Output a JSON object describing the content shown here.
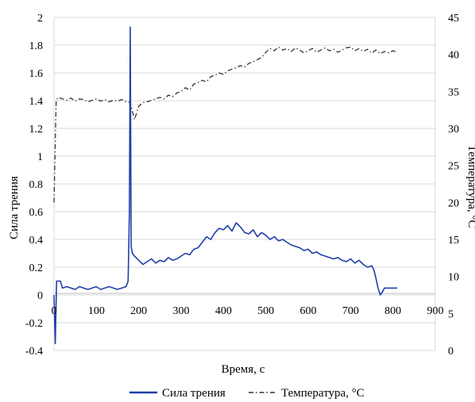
{
  "chart_data": {
    "type": "line",
    "xlabel": "Время, с",
    "ylabel": "Сила трения",
    "y2label": "Температура, °С",
    "xlim": [
      0,
      900
    ],
    "ylim": [
      -0.4,
      2
    ],
    "y2lim": [
      0,
      45
    ],
    "x_ticks": [
      "0",
      "100",
      "200",
      "300",
      "400",
      "500",
      "600",
      "700",
      "800",
      "900"
    ],
    "y_ticks": [
      "-0.4",
      "-0.2",
      "0",
      "0.2",
      "0.4",
      "0.6",
      "0.8",
      "1",
      "1.2",
      "1.4",
      "1.6",
      "1.8",
      "2"
    ],
    "y2_ticks": [
      "0",
      "5",
      "10",
      "15",
      "20",
      "25",
      "30",
      "35",
      "40",
      "45"
    ],
    "grid": true,
    "legend_position": "bottom",
    "colors": {
      "friction": "#1f3fa8",
      "temperature": "#333333",
      "grid": "#d9d9d9"
    },
    "series": [
      {
        "name": "Сила трения",
        "axis": "left",
        "style": "solid",
        "x": [
          0,
          3,
          6,
          10,
          15,
          20,
          30,
          40,
          50,
          60,
          70,
          80,
          90,
          100,
          110,
          120,
          130,
          140,
          150,
          160,
          170,
          175,
          178,
          180,
          182,
          185,
          190,
          200,
          210,
          220,
          230,
          240,
          250,
          260,
          270,
          280,
          290,
          300,
          310,
          320,
          330,
          340,
          350,
          360,
          370,
          380,
          390,
          400,
          410,
          420,
          430,
          440,
          450,
          460,
          470,
          480,
          490,
          500,
          510,
          520,
          530,
          540,
          550,
          560,
          570,
          580,
          590,
          600,
          610,
          620,
          630,
          640,
          650,
          660,
          670,
          680,
          690,
          700,
          710,
          720,
          730,
          740,
          750,
          755,
          760,
          765,
          770,
          775,
          780,
          790,
          800,
          810
        ],
        "values": [
          0,
          -0.35,
          0.1,
          0.1,
          0.1,
          0.05,
          0.06,
          0.05,
          0.04,
          0.06,
          0.05,
          0.04,
          0.05,
          0.06,
          0.04,
          0.05,
          0.06,
          0.05,
          0.04,
          0.05,
          0.06,
          0.1,
          0.6,
          1.93,
          0.35,
          0.3,
          0.28,
          0.25,
          0.22,
          0.24,
          0.26,
          0.23,
          0.25,
          0.24,
          0.27,
          0.25,
          0.26,
          0.28,
          0.3,
          0.29,
          0.33,
          0.34,
          0.38,
          0.42,
          0.4,
          0.45,
          0.48,
          0.47,
          0.5,
          0.46,
          0.52,
          0.49,
          0.45,
          0.44,
          0.47,
          0.42,
          0.45,
          0.43,
          0.4,
          0.42,
          0.39,
          0.4,
          0.38,
          0.36,
          0.35,
          0.34,
          0.32,
          0.33,
          0.3,
          0.31,
          0.29,
          0.28,
          0.27,
          0.26,
          0.27,
          0.25,
          0.24,
          0.26,
          0.23,
          0.25,
          0.22,
          0.2,
          0.21,
          0.18,
          0.12,
          0.05,
          0.0,
          0.02,
          0.05,
          0.05,
          0.05,
          0.05
        ]
      },
      {
        "name": "Температура, °С",
        "axis": "right",
        "style": "dash-dot",
        "x": [
          0,
          5,
          10,
          20,
          30,
          40,
          50,
          60,
          70,
          80,
          90,
          100,
          110,
          120,
          130,
          140,
          150,
          160,
          170,
          180,
          190,
          200,
          210,
          220,
          230,
          240,
          250,
          260,
          270,
          280,
          290,
          300,
          310,
          320,
          330,
          340,
          350,
          360,
          370,
          380,
          390,
          400,
          410,
          420,
          430,
          440,
          450,
          460,
          470,
          480,
          490,
          500,
          510,
          520,
          530,
          540,
          550,
          560,
          570,
          580,
          590,
          600,
          610,
          620,
          630,
          640,
          650,
          660,
          670,
          680,
          690,
          700,
          710,
          720,
          730,
          740,
          750,
          760,
          770,
          780,
          790,
          800,
          810
        ],
        "values": [
          20,
          33.8,
          34.2,
          34.0,
          33.8,
          34.1,
          33.7,
          34.0,
          33.9,
          33.6,
          33.8,
          34.0,
          33.7,
          33.9,
          33.6,
          33.8,
          33.7,
          33.9,
          33.6,
          33.5,
          31.2,
          33.0,
          33.5,
          33.6,
          33.8,
          34.0,
          34.2,
          34.0,
          34.5,
          34.3,
          34.8,
          35.0,
          35.5,
          35.2,
          36.0,
          36.2,
          36.5,
          36.3,
          37.0,
          37.2,
          37.5,
          37.3,
          37.8,
          38.0,
          38.2,
          38.5,
          38.3,
          38.8,
          39.0,
          39.3,
          39.6,
          40.3,
          40.8,
          40.5,
          41.0,
          40.6,
          40.8,
          40.4,
          40.9,
          40.6,
          40.2,
          40.5,
          40.8,
          40.3,
          40.6,
          40.9,
          40.5,
          40.7,
          40.3,
          40.6,
          40.9,
          41.0,
          40.5,
          40.8,
          40.4,
          40.7,
          40.2,
          40.6,
          40.1,
          40.4,
          40.2,
          40.5,
          40.3
        ]
      }
    ]
  }
}
